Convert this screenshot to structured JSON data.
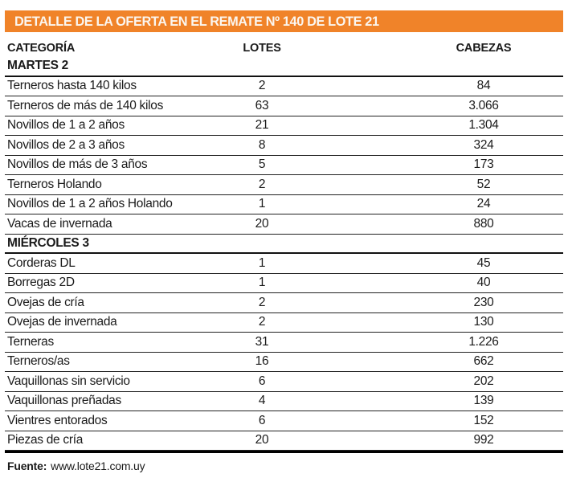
{
  "title": "DETALLE DE LA OFERTA EN EL REMATE Nº 140 DE LOTE 21",
  "colors": {
    "accent_orange": "#F08329",
    "title_text": "#FBF6EF",
    "text": "#1a1a1a",
    "rule": "#222222"
  },
  "footer": {
    "label": "Fuente:",
    "value": "www.lote21.com.uy"
  },
  "chart_data": {
    "type": "table",
    "title": "DETALLE DE LA OFERTA EN EL REMATE Nº 140 DE LOTE 21",
    "columns": [
      "CATEGORÍA",
      "LOTES",
      "CABEZAS"
    ],
    "sections": [
      {
        "label": "MARTES 2",
        "rows": [
          [
            "Terneros hasta 140 kilos",
            "2",
            "84"
          ],
          [
            "Terneros de más de 140 kilos",
            "63",
            "3.066"
          ],
          [
            "Novillos de 1 a 2 años",
            "21",
            "1.304"
          ],
          [
            "Novillos de 2 a 3 años",
            "8",
            "324"
          ],
          [
            "Novillos de más de 3 años",
            "5",
            "173"
          ],
          [
            "Terneros Holando",
            "2",
            "52"
          ],
          [
            "Novillos de 1 a 2 años Holando",
            "1",
            "24"
          ],
          [
            "Vacas de invernada",
            "20",
            "880"
          ]
        ]
      },
      {
        "label": "MIÉRCOLES 3",
        "rows": [
          [
            "Corderas DL",
            "1",
            "45"
          ],
          [
            "Borregas 2D",
            "1",
            "40"
          ],
          [
            "Ovejas de cría",
            "2",
            "230"
          ],
          [
            "Ovejas de invernada",
            "2",
            "130"
          ],
          [
            "Terneras",
            "31",
            "1.226"
          ],
          [
            "Terneros/as",
            "16",
            "662"
          ],
          [
            "Vaquillonas sin servicio",
            "6",
            "202"
          ],
          [
            "Vaquillonas preñadas",
            "4",
            "139"
          ],
          [
            "Vientres entorados",
            "6",
            "152"
          ],
          [
            "Piezas de cría",
            "20",
            "992"
          ]
        ]
      }
    ],
    "source": "www.lote21.com.uy"
  }
}
